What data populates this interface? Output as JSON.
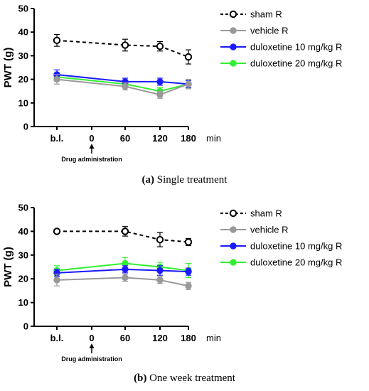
{
  "chart_data": [
    {
      "type": "line",
      "panel": "a",
      "ylabel": "PWT (g)",
      "x_unit": "min",
      "categories": [
        "b.l.",
        "0",
        "60",
        "120",
        "180"
      ],
      "ylim": [
        0,
        50
      ],
      "yticks": [
        0,
        10,
        20,
        30,
        40,
        50
      ],
      "annotation": "Drug administration",
      "annotation_at": "0",
      "legend_position": "right",
      "series": [
        {
          "name": "sham R",
          "color": "#000000",
          "marker": "open",
          "dashed": true,
          "x": [
            "b.l.",
            "60",
            "120",
            "180"
          ],
          "values": [
            36.5,
            34.5,
            34,
            29.5
          ],
          "errors": [
            2.5,
            2.5,
            2,
            3
          ]
        },
        {
          "name": "vehicle R",
          "color": "#999999",
          "marker": "filled",
          "dashed": false,
          "x": [
            "b.l.",
            "60",
            "120",
            "180"
          ],
          "values": [
            20,
            17,
            13.5,
            18
          ],
          "errors": [
            2,
            1.5,
            1.5,
            2
          ]
        },
        {
          "name": "duloxetine 10 mg/kg R",
          "color": "#1a1aff",
          "marker": "filled",
          "dashed": false,
          "x": [
            "b.l.",
            "60",
            "120",
            "180"
          ],
          "values": [
            22,
            19,
            19,
            18
          ],
          "errors": [
            2,
            1.5,
            1.5,
            1.5
          ]
        },
        {
          "name": "duloxetine 20 mg/kg R",
          "color": "#33ee33",
          "marker": "filled",
          "dashed": false,
          "x": [
            "b.l.",
            "60",
            "120",
            "180"
          ],
          "values": [
            21,
            18,
            15,
            18
          ],
          "errors": [
            1.5,
            1.5,
            1.5,
            2
          ]
        }
      ],
      "caption_label": "(a)",
      "caption_text": " Single treatment"
    },
    {
      "type": "line",
      "panel": "b",
      "ylabel": "PWT (g)",
      "x_unit": "min",
      "categories": [
        "b.l.",
        "0",
        "60",
        "120",
        "180"
      ],
      "ylim": [
        0,
        50
      ],
      "yticks": [
        0,
        10,
        20,
        30,
        40,
        50
      ],
      "annotation": "Drug administration",
      "annotation_at": "0",
      "legend_position": "right",
      "series": [
        {
          "name": "sham R",
          "color": "#000000",
          "marker": "open",
          "dashed": true,
          "x": [
            "b.l.",
            "60",
            "120",
            "180"
          ],
          "values": [
            40,
            40,
            36.5,
            35.5
          ],
          "errors": [
            0.5,
            2,
            3,
            1.5
          ]
        },
        {
          "name": "vehicle R",
          "color": "#999999",
          "marker": "filled",
          "dashed": false,
          "x": [
            "b.l.",
            "60",
            "120",
            "180"
          ],
          "values": [
            19.5,
            20.5,
            19.5,
            17
          ],
          "errors": [
            2.5,
            1.5,
            1.5,
            1.5
          ]
        },
        {
          "name": "duloxetine 10 mg/kg R",
          "color": "#1a1aff",
          "marker": "filled",
          "dashed": false,
          "x": [
            "b.l.",
            "60",
            "120",
            "180"
          ],
          "values": [
            22.5,
            24,
            23.5,
            23
          ],
          "errors": [
            1.5,
            1.5,
            2,
            1.5
          ]
        },
        {
          "name": "duloxetine 20 mg/kg R",
          "color": "#33ee33",
          "marker": "filled",
          "dashed": false,
          "x": [
            "b.l.",
            "60",
            "120",
            "180"
          ],
          "values": [
            23.5,
            26.5,
            25,
            23.5
          ],
          "errors": [
            2,
            2.5,
            2,
            3
          ]
        }
      ],
      "caption_label": "(b)",
      "caption_text": " One week treatment"
    }
  ]
}
